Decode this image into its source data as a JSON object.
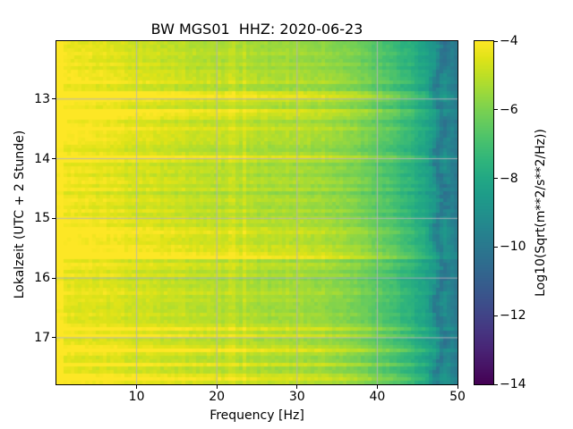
{
  "figure": {
    "title": "BW MGS01  HHZ: 2020-06-23"
  },
  "axes": {
    "xlabel": "Frequency [Hz]",
    "ylabel": "Lokalzeit (UTC + 2 Stunde)",
    "x_ticks": [
      10,
      20,
      30,
      40,
      50
    ],
    "y_ticks": [
      13,
      14,
      15,
      16,
      17
    ],
    "x_range": [
      0,
      50
    ],
    "y_range": [
      12.03,
      17.78
    ],
    "grid": true,
    "grid_color": "#b4b4bc",
    "spine_color": "#000000"
  },
  "colorbar": {
    "label": "Log10(Sqrt(m**2/s**2/Hz))",
    "tick_values": [
      -4,
      -6,
      -8,
      -10,
      -12,
      -14
    ],
    "tick_labels": [
      "−4",
      "−6",
      "−8",
      "−10",
      "−12",
      "−14"
    ],
    "vmax": -4,
    "vmin": -14,
    "colormap": "viridis"
  },
  "chart_data": {
    "type": "heatmap",
    "subtype": "spectrogram",
    "title": "BW MGS01  HHZ: 2020-06-23",
    "xlabel": "Frequency [Hz]",
    "ylabel": "Lokalzeit (UTC + 2 Stunde)",
    "x_unit": "Hz",
    "y_unit": "hour, local time (UTC + 2)",
    "x_range": [
      0,
      50
    ],
    "y_range": [
      12.03,
      17.78
    ],
    "z_label": "Log10(Sqrt(m**2/s**2/Hz))",
    "z_range": [
      -14,
      -4
    ],
    "colormap": "viridis",
    "legend_position": "right-colorbar",
    "mean_profile_hz_log10": [
      [
        0,
        -4.0
      ],
      [
        2,
        -4.1
      ],
      [
        5,
        -4.25
      ],
      [
        8,
        -4.45
      ],
      [
        10,
        -4.6
      ],
      [
        14,
        -4.8
      ],
      [
        18,
        -5.0
      ],
      [
        22,
        -5.15
      ],
      [
        26,
        -5.3
      ],
      [
        30,
        -5.35
      ],
      [
        33,
        -5.5
      ],
      [
        36,
        -5.8
      ],
      [
        38,
        -6.1
      ],
      [
        40,
        -6.5
      ],
      [
        42,
        -7.0
      ],
      [
        44,
        -7.5
      ],
      [
        46,
        -8.2
      ],
      [
        48,
        -8.9
      ],
      [
        49,
        -9.4
      ],
      [
        50,
        -10.1
      ]
    ],
    "bright_band_times": [
      12.9,
      13.25,
      13.93,
      15.2,
      15.55,
      16.82,
      17.16,
      17.64
    ],
    "narrowband_bright_lines_hz": [
      21.9,
      23.4
    ],
    "dark_line_hz": 47.8
  },
  "colors": {
    "background": "#ffffff",
    "text": "#000000",
    "viridis_stops": [
      "#440154",
      "#471365",
      "#482475",
      "#463480",
      "#414487",
      "#3b528b",
      "#355f8d",
      "#2f6c8e",
      "#2a788e",
      "#25848e",
      "#21918c",
      "#1e9c89",
      "#22a884",
      "#2fb47c",
      "#44bf70",
      "#5ec962",
      "#7ad151",
      "#9bd93c",
      "#bddf26",
      "#dfe318",
      "#fde725"
    ]
  }
}
